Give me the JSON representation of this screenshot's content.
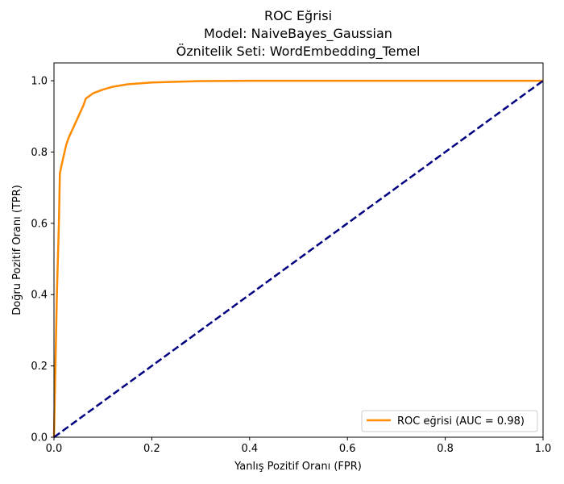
{
  "chart_data": {
    "type": "line",
    "title_lines": [
      "ROC Eğrisi",
      "Model: NaiveBayes_Gaussian",
      "Öznitelik Seti: WordEmbedding_Temel"
    ],
    "xlabel": "Yanlış Pozitif Oranı (FPR)",
    "ylabel": "Doğru Pozitif Oranı (TPR)",
    "xlim": [
      0.0,
      1.0
    ],
    "ylim": [
      0.0,
      1.05
    ],
    "x_ticks": [
      "0.0",
      "0.2",
      "0.4",
      "0.6",
      "0.8",
      "1.0"
    ],
    "y_ticks": [
      "0.0",
      "0.2",
      "0.4",
      "0.6",
      "0.8",
      "1.0"
    ],
    "grid": false,
    "legend_position": "lower-right",
    "series": [
      {
        "name": "ROC eğrisi (AUC = 0.98)",
        "color": "#ff8c00",
        "style": "solid",
        "x": [
          0.0,
          0.003,
          0.006,
          0.01,
          0.012,
          0.015,
          0.02,
          0.025,
          0.03,
          0.04,
          0.05,
          0.06,
          0.065,
          0.08,
          0.1,
          0.12,
          0.15,
          0.2,
          0.25,
          0.3,
          0.4,
          0.5,
          0.6,
          0.8,
          1.0
        ],
        "y": [
          0.0,
          0.2,
          0.4,
          0.6,
          0.74,
          0.76,
          0.79,
          0.82,
          0.84,
          0.87,
          0.9,
          0.93,
          0.95,
          0.965,
          0.975,
          0.983,
          0.99,
          0.995,
          0.997,
          0.999,
          1.0,
          1.0,
          1.0,
          1.0,
          1.0
        ]
      },
      {
        "name": "",
        "color": "#000080",
        "style": "dashed",
        "x": [
          0.0,
          1.0
        ],
        "y": [
          0.0,
          1.0
        ]
      }
    ]
  }
}
